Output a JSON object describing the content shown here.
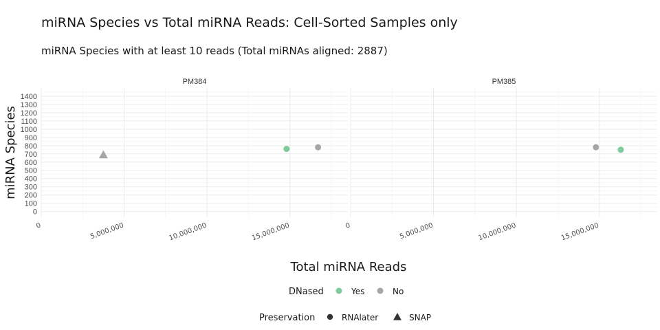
{
  "chart_data": {
    "type": "scatter",
    "title": "miRNA Species vs Total miRNA Reads: Cell-Sorted Samples only",
    "subtitle": "miRNA Species with at least 10 reads (Total miRNAs aligned: 2887)",
    "xlabel": "Total miRNA Reads",
    "ylabel": "miRNA Species",
    "xlim": [
      0,
      18500000
    ],
    "ylim": [
      -70,
      1500
    ],
    "x_ticks": [
      0,
      5000000,
      10000000,
      15000000
    ],
    "x_tick_labels": [
      "0",
      "5,000,000",
      "10,000,000",
      "15,000,000"
    ],
    "y_ticks": [
      0,
      100,
      200,
      300,
      400,
      500,
      600,
      700,
      800,
      900,
      1000,
      1100,
      1200,
      1300,
      1400
    ],
    "y_tick_labels": [
      "0",
      "100",
      "200",
      "300",
      "400",
      "500",
      "600",
      "700",
      "800",
      "900",
      "1000",
      "1100",
      "1200",
      "1300",
      "1400"
    ],
    "grid": true,
    "facets": [
      {
        "label": "PM384",
        "points": [
          {
            "x": 3750000,
            "y": 690,
            "dnased": "No",
            "preservation": "SNAP"
          },
          {
            "x": 14800000,
            "y": 760,
            "dnased": "Yes",
            "preservation": "RNAlater"
          },
          {
            "x": 16700000,
            "y": 780,
            "dnased": "No",
            "preservation": "RNAlater"
          }
        ]
      },
      {
        "label": "PM385",
        "points": [
          {
            "x": 14800000,
            "y": 780,
            "dnased": "No",
            "preservation": "RNAlater"
          },
          {
            "x": 16300000,
            "y": 750,
            "dnased": "Yes",
            "preservation": "RNAlater"
          }
        ]
      }
    ],
    "legends": {
      "color": {
        "title": "DNased",
        "entries": [
          {
            "label": "Yes",
            "color": "#7fcb9c"
          },
          {
            "label": "No",
            "color": "#a6a6a6"
          }
        ]
      },
      "shape": {
        "title": "Preservation",
        "entries": [
          {
            "label": "RNAlater",
            "shape": "circle"
          },
          {
            "label": "SNAP",
            "shape": "triangle"
          }
        ]
      },
      "placement": "bottom"
    }
  }
}
